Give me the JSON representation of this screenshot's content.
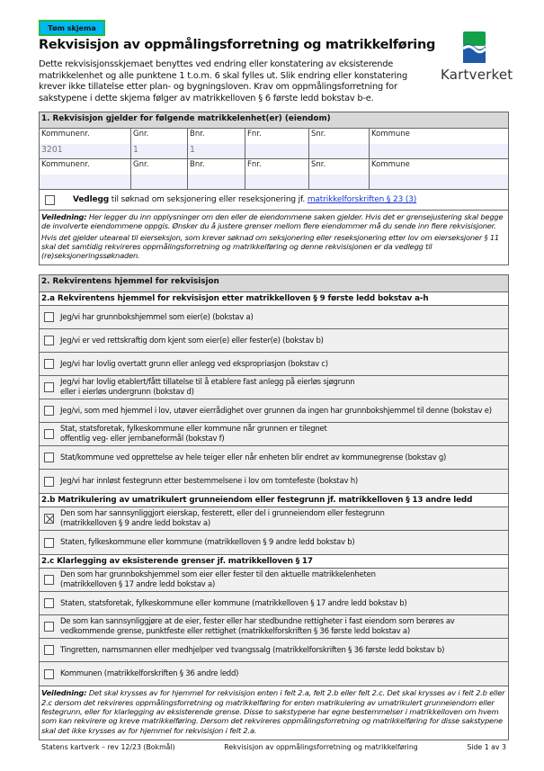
{
  "clear_button": "Tøm skjema",
  "title": "Rekvisisjon av oppmålingsforretning og matrikkelføring",
  "intro": "Dette rekvisisjonsskjemaet benyttes ved endring eller konstatering av eksisterende matrikkelenhet og alle punktene 1 t.o.m. 6 skal fylles ut. Slik endring eller konstatering krever ikke tillatelse etter plan- og bygningsloven. Krav om oppmålingsforretning for sakstypene i dette skjema følger av matrikkelloven § 6 første ledd bokstav b-e.",
  "logo": {
    "text": "Kartverket",
    "colors": {
      "green": "#12a14a",
      "blue": "#1d5aa8"
    }
  },
  "section1": {
    "header": "1. Rekvisisjon gjelder for følgende matrikkelenhet(er) (eiendom)",
    "columns": [
      "Kommunenr.",
      "Gnr.",
      "Bnr.",
      "Fnr.",
      "Snr.",
      "Kommune"
    ],
    "rows": [
      [
        "3201",
        "1",
        "1",
        "",
        "",
        ""
      ],
      [
        "",
        "",
        "",
        "",
        "",
        ""
      ]
    ],
    "vedlegg_bold": "Vedlegg",
    "vedlegg_text": " til søknad om seksjonering eller reseksjonering jf. ",
    "vedlegg_link": "matrikkelforskriften § 23 (3)",
    "vedlegg_checked": false,
    "guide_label": "Veiledning:",
    "guide_text": " Her legger du inn opplysninger om den eller de eiendommene saken gjelder. Hvis det er grensejustering skal begge de involverte eiendommene oppgis. Ønsker du å justere grenser mellom flere eiendommer må du sende inn flere rekvisisjoner.",
    "guide_text2": "Hvis det gjelder uteareal til eierseksjon, som krever søknad om seksjonering eller reseksjonering etter lov om eierseksjoner § 11 skal det samtidig rekvireres oppmålingsforretning og matrikkelføring og denne rekvisisjonen er da vedlegg til (re)seksjoneringssøknaden."
  },
  "section2": {
    "header": "2. Rekvirentens hjemmel for rekvisisjon",
    "groups": [
      {
        "header": "2.a Rekvirentens hjemmel for rekvisisjon etter matrikkelloven § 9 første ledd bokstav a-h",
        "options": [
          {
            "label": "Jeg/vi har grunnbokshjemmel som eier(e) (bokstav a)",
            "checked": false
          },
          {
            "label": "Jeg/vi er ved rettskraftig dom kjent som eier(e) eller fester(e) (bokstav b)",
            "checked": false
          },
          {
            "label": "Jeg/vi har lovlig overtatt grunn eller anlegg ved ekspropriasjon (bokstav c)",
            "checked": false
          },
          {
            "label": "Jeg/vi har lovlig etablert/fått tillatelse til å etablere fast anlegg på eierløs sjøgrunn\neller i eierløs undergrunn (bokstav d)",
            "checked": false
          },
          {
            "label": "Jeg/vi, som med hjemmel i lov, utøver eierrådighet over grunnen da ingen har grunnbokshjemmel til denne (bokstav e)",
            "checked": false
          },
          {
            "label": "Stat, statsforetak, fylkeskommune eller kommune når grunnen er tilegnet\noffentlig veg- eller jernbaneformål (bokstav f)",
            "checked": false
          },
          {
            "label": "Stat/kommune ved opprettelse av hele teiger eller når enheten blir endret av kommunegrense (bokstav g)",
            "checked": false
          },
          {
            "label": "Jeg/vi har innløst festegrunn etter bestemmelsene i lov om tomtefeste (bokstav h)",
            "checked": false
          }
        ]
      },
      {
        "header": "2.b Matrikulering av umatrikulert grunneiendom eller festegrunn jf. matrikkelloven § 13 andre ledd",
        "options": [
          {
            "label": "Den som har sannsynliggjort eierskap, festerett, eller del i grunneiendom eller festegrunn\n(matrikkelloven § 9 andre ledd bokstav a)",
            "checked": true
          },
          {
            "label": "Staten, fylkeskommune eller kommune (matrikkelloven § 9 andre ledd bokstav b)",
            "checked": false
          }
        ]
      },
      {
        "header": "2.c Klarlegging av eksisterende grenser jf. matrikkelloven § 17",
        "options": [
          {
            "label": "Den som har grunnbokshjemmel som eier eller fester til den aktuelle matrikkelenheten\n(matrikkelloven § 17 andre ledd bokstav a)",
            "checked": false
          },
          {
            "label": "Staten, statsforetak, fylkeskommune eller kommune (matrikkelloven § 17 andre ledd bokstav b)",
            "checked": false
          },
          {
            "label": "De som kan sannsynliggjøre at de eier, fester eller har stedbundne rettigheter i fast eiendom som berøres av\nvedkommende grense, punktfeste eller rettighet (matrikkelforskriften § 36 første ledd bokstav a)",
            "checked": false
          },
          {
            "label": "Tingretten, namsmannen eller medhjelper ved tvangssalg (matrikkelforskriften § 36 første ledd bokstav b)",
            "checked": false
          },
          {
            "label": "Kommunen (matrikkelforskriften § 36 andre ledd)",
            "checked": false
          }
        ]
      }
    ],
    "guide_label": "Veiledning:",
    "guide_text": " Det skal krysses av for hjemmel for rekvisisjon enten i felt 2.a, felt 2.b eller felt 2.c. Det skal krysses av i felt 2.b eller 2.c dersom det rekvireres oppmålingsforretning og matrikkelføring for enten matrikulering av umatrikulert grunneiendom eller festegrunn, eller for klarlegging av eksisterende grense. Disse to sakstypene har egne bestemmelser i matrikkelloven om hvem som kan rekvirere og kreve matrikkelføring. Dersom det rekvireres oppmålingsforretning og matrikkelføring for disse sakstypene skal det ikke krysses av for hjemmel for rekvisisjon i felt 2.a."
  },
  "footer": {
    "left": "Statens kartverk – rev 12/23 (Bokmål)",
    "center": "Rekvisisjon av oppmålingsforretning og matrikkelføring",
    "right": "Side 1 av 3"
  }
}
